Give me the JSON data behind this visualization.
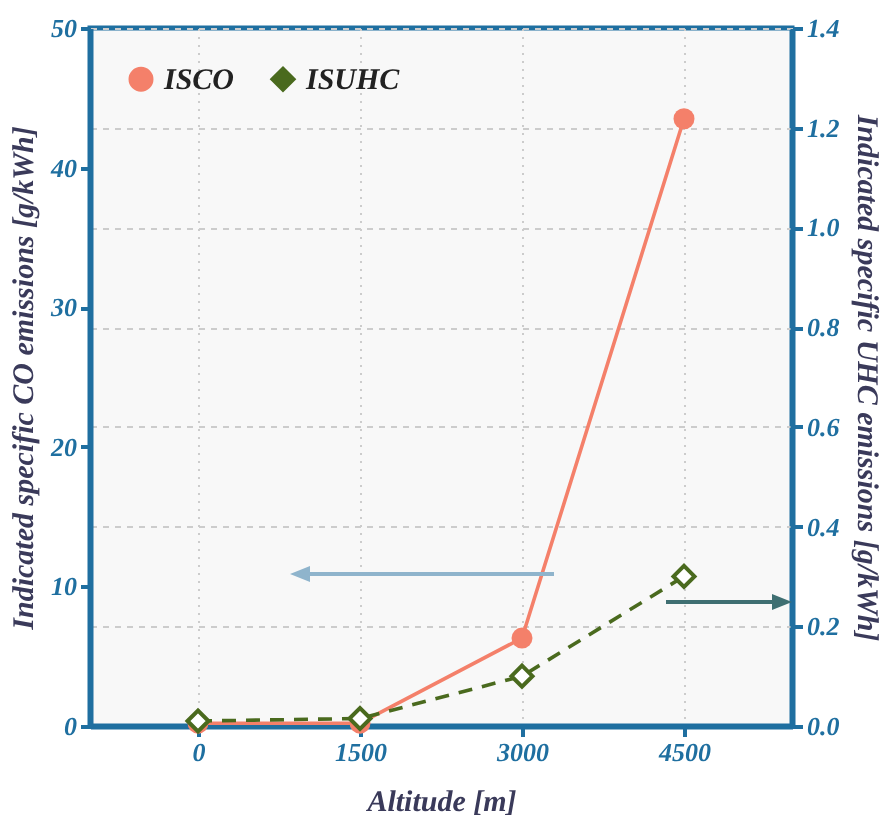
{
  "chart_data": {
    "type": "line",
    "xlabel": "Altitude [m]",
    "ylabel": "Indicated specific CO emissions [g/kWh]",
    "y2label": "Indicated specific UHC emissions [g/kWh]",
    "x": [
      0,
      1500,
      3000,
      4500
    ],
    "series": [
      {
        "name": "ISCO",
        "color": "#f4806a",
        "marker": "circle",
        "line_style": "solid",
        "values": [
          0.2,
          0.2,
          6.3,
          43.5
        ]
      },
      {
        "name": "ISUHC",
        "color": "#4a6a1e",
        "marker": "diamond",
        "line_style": "dashed",
        "axis": "y2",
        "values": [
          0.01,
          0.015,
          0.1,
          0.3
        ]
      }
    ],
    "xlim": [
      -1000,
      5500
    ],
    "xticks": [
      0,
      1500,
      3000,
      4500
    ],
    "ylim": [
      0,
      50
    ],
    "yticks": [
      0,
      10,
      20,
      30,
      40,
      50
    ],
    "y2lim": [
      0,
      1.4
    ],
    "y2ticks": [
      {
        "value": 0,
        "label": "0.0"
      },
      0.2,
      0.4,
      0.6,
      0.8,
      {
        "value": 1,
        "label": "1.0"
      },
      1.2,
      1.4
    ],
    "grid": true,
    "legend": "top left"
  }
}
